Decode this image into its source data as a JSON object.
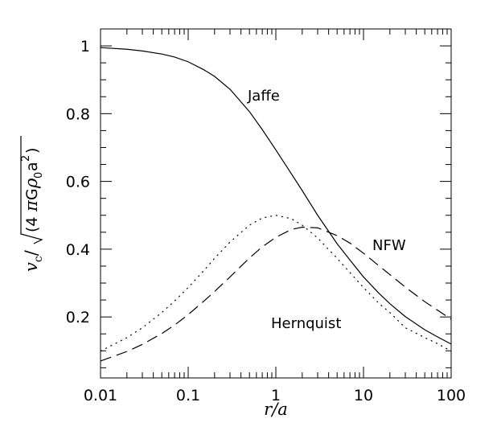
{
  "chart_data": {
    "type": "line",
    "xscale": "log",
    "xlim": [
      0.01,
      100
    ],
    "ylim": [
      0.02,
      1.05
    ],
    "xlabel": "r/a",
    "ylabel": "v_c/√(4πGρ₀a²)",
    "xtick_labels": [
      "0.01",
      "0.1",
      "1",
      "10",
      "100"
    ],
    "ytick_labels": [
      "0.2",
      "0.4",
      "0.6",
      "0.8",
      "1"
    ],
    "grid": false,
    "legend": "none",
    "series": [
      {
        "name": "Jaffe",
        "style": "solid",
        "x": [
          0.01,
          0.02,
          0.03,
          0.05,
          0.07,
          0.1,
          0.15,
          0.2,
          0.3,
          0.5,
          0.7,
          1,
          1.5,
          2,
          3,
          5,
          7,
          10,
          15,
          20,
          30,
          50,
          70,
          100
        ],
        "y": [
          0.995,
          0.99,
          0.985,
          0.976,
          0.967,
          0.953,
          0.93,
          0.91,
          0.872,
          0.806,
          0.753,
          0.693,
          0.623,
          0.573,
          0.5,
          0.416,
          0.368,
          0.318,
          0.27,
          0.239,
          0.201,
          0.162,
          0.141,
          0.12
        ]
      },
      {
        "name": "NFW",
        "style": "dashed",
        "x": [
          0.01,
          0.02,
          0.03,
          0.05,
          0.07,
          0.1,
          0.15,
          0.2,
          0.3,
          0.5,
          0.7,
          1,
          1.5,
          2,
          3,
          5,
          7,
          10,
          15,
          20,
          30,
          50,
          70,
          100
        ],
        "y": [
          0.07,
          0.098,
          0.119,
          0.151,
          0.176,
          0.207,
          0.246,
          0.275,
          0.318,
          0.374,
          0.407,
          0.435,
          0.458,
          0.465,
          0.463,
          0.44,
          0.418,
          0.388,
          0.351,
          0.325,
          0.288,
          0.245,
          0.22,
          0.193
        ]
      },
      {
        "name": "Hernquist",
        "style": "dotted",
        "x": [
          0.01,
          0.02,
          0.03,
          0.05,
          0.07,
          0.1,
          0.15,
          0.2,
          0.3,
          0.5,
          0.7,
          1,
          1.5,
          2,
          3,
          5,
          7,
          10,
          15,
          20,
          30,
          50,
          70,
          100
        ],
        "y": [
          0.099,
          0.139,
          0.168,
          0.213,
          0.247,
          0.287,
          0.336,
          0.373,
          0.421,
          0.471,
          0.492,
          0.5,
          0.49,
          0.471,
          0.433,
          0.373,
          0.331,
          0.287,
          0.24,
          0.213,
          0.168,
          0.139,
          0.121,
          0.099
        ]
      }
    ]
  }
}
